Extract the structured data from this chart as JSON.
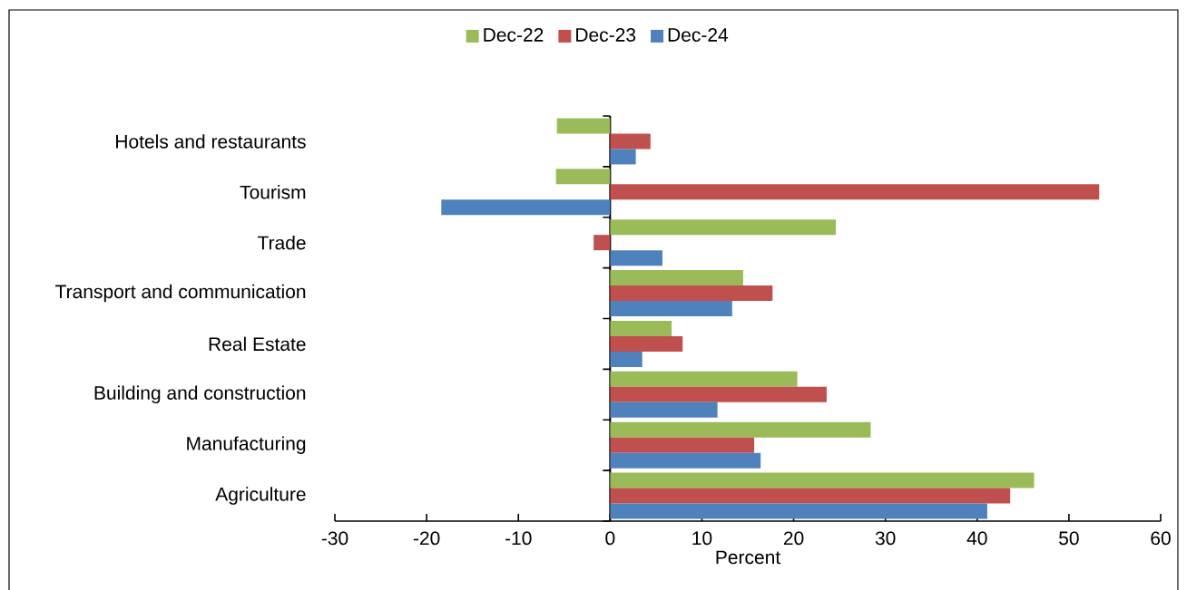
{
  "chart_data": {
    "type": "bar",
    "orientation": "horizontal",
    "xlabel": "Percent",
    "categories": [
      "Hotels and restaurants",
      "Tourism",
      "Trade",
      "Transport and communication",
      "Real Estate",
      "Building and construction",
      "Manufacturing",
      "Agriculture"
    ],
    "series": [
      {
        "name": "Dec-22",
        "color": "#9bbb59",
        "values": [
          -5.8,
          -5.9,
          24.6,
          14.5,
          6.7,
          20.4,
          28.4,
          46.2
        ]
      },
      {
        "name": "Dec-23",
        "color": "#c0504d",
        "values": [
          4.4,
          53.3,
          -1.8,
          17.7,
          7.9,
          23.6,
          15.7,
          43.6
        ]
      },
      {
        "name": "Dec-24",
        "color": "#4f81bd",
        "values": [
          2.8,
          -18.4,
          5.7,
          13.3,
          3.5,
          11.7,
          16.4,
          41.1
        ]
      }
    ],
    "xlim": [
      -30,
      60
    ],
    "xticks": [
      -30,
      -20,
      -10,
      0,
      10,
      20,
      30,
      40,
      50,
      60
    ],
    "legend": "top"
  }
}
